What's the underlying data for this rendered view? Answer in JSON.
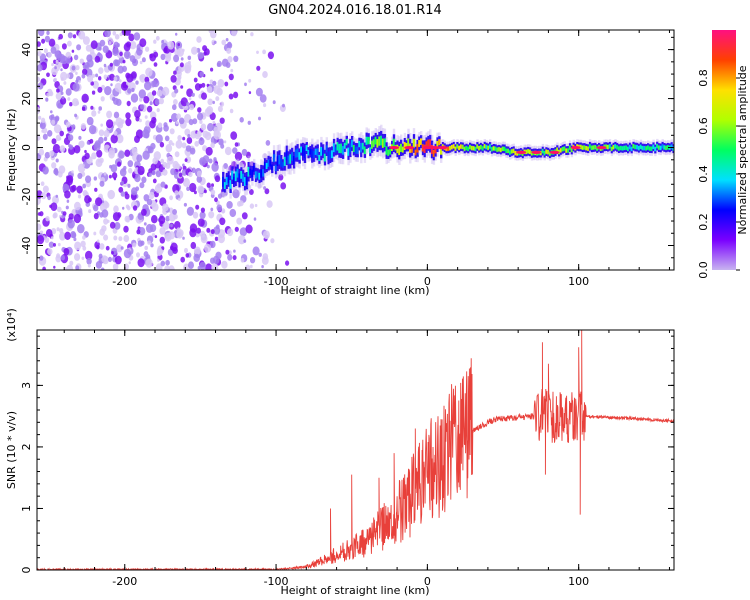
{
  "title": "GN04.2024.016.18.01.R14",
  "chart_data": [
    {
      "type": "heatmap",
      "xlabel": "Height of straight line (km)",
      "ylabel": "Frequency (Hz)",
      "xlim": [
        -258,
        163
      ],
      "ylim": [
        -50,
        48
      ],
      "xticks": [
        -200,
        -100,
        0,
        100
      ],
      "yticks": [
        -40,
        -20,
        0,
        20,
        40
      ],
      "colorbar": {
        "label": "Normalized spectral amplitude",
        "range": [
          0,
          1
        ],
        "ticks": [
          "0.0",
          "0.2",
          "0.4",
          "0.6",
          "0.8"
        ],
        "tick_values": [
          0,
          0.2,
          0.4,
          0.6,
          0.8
        ],
        "colormap": [
          "#c8b4f0",
          "#7a00ff",
          "#0000ff",
          "#00e0ff",
          "#00ff60",
          "#b0ff00",
          "#ffe000",
          "#ff4000",
          "#ff1080"
        ]
      },
      "ridge": [
        {
          "x": -135,
          "f": -14,
          "a": 0.35
        },
        {
          "x": -118,
          "f": -12,
          "a": 0.38
        },
        {
          "x": -100,
          "f": -6,
          "a": 0.36
        },
        {
          "x": -85,
          "f": -3,
          "a": 0.42
        },
        {
          "x": -70,
          "f": -2,
          "a": 0.45
        },
        {
          "x": -55,
          "f": 0,
          "a": 0.45
        },
        {
          "x": -40,
          "f": 1,
          "a": 0.5
        },
        {
          "x": -25,
          "f": 0,
          "a": 0.7
        },
        {
          "x": -10,
          "f": 0,
          "a": 0.8
        },
        {
          "x": 0,
          "f": 0,
          "a": 0.95
        },
        {
          "x": 20,
          "f": 0,
          "a": 0.75
        },
        {
          "x": 40,
          "f": 0,
          "a": 0.6
        },
        {
          "x": 60,
          "f": -2,
          "a": 0.7
        },
        {
          "x": 80,
          "f": -2,
          "a": 0.65
        },
        {
          "x": 100,
          "f": 0,
          "a": 0.75
        },
        {
          "x": 130,
          "f": 0,
          "a": 0.55
        },
        {
          "x": 163,
          "f": 0,
          "a": 0.5
        }
      ],
      "noise_region_xmax": -100
    },
    {
      "type": "line",
      "xlabel": "Height of straight line (km)",
      "ylabel": "SNR (10 * v/v)",
      "y_multiplier": "(x10⁴)",
      "xlim": [
        -258,
        163
      ],
      "ylim": [
        0,
        3.9
      ],
      "xticks": [
        -200,
        -100,
        0,
        100
      ],
      "yticks": [
        0,
        1,
        2,
        3
      ],
      "color": "#e8403a",
      "envelope": [
        {
          "x": -258,
          "y": 0.01
        },
        {
          "x": -100,
          "y": 0.01
        },
        {
          "x": -80,
          "y": 0.05
        },
        {
          "x": -60,
          "y": 0.25
        },
        {
          "x": -40,
          "y": 0.45
        },
        {
          "x": -20,
          "y": 0.9
        },
        {
          "x": -5,
          "y": 1.35
        },
        {
          "x": 10,
          "y": 1.85
        },
        {
          "x": 25,
          "y": 2.2
        },
        {
          "x": 45,
          "y": 2.45
        },
        {
          "x": 70,
          "y": 2.5
        },
        {
          "x": 100,
          "y": 2.5
        },
        {
          "x": 130,
          "y": 2.47
        },
        {
          "x": 163,
          "y": 2.42
        }
      ],
      "peaks": [
        {
          "x": -64,
          "y": 1.0
        },
        {
          "x": -50,
          "y": 1.55
        },
        {
          "x": -32,
          "y": 1.5
        },
        {
          "x": -22,
          "y": 1.9
        },
        {
          "x": -8,
          "y": 2.3
        },
        {
          "x": 76,
          "y": 3.7
        },
        {
          "x": 80,
          "y": 3.35
        },
        {
          "x": 100,
          "y": 3.62
        },
        {
          "x": 102,
          "y": 3.9
        }
      ],
      "troughs": [
        {
          "x": 78,
          "y": 1.55
        },
        {
          "x": 101,
          "y": 0.9
        }
      ]
    }
  ]
}
